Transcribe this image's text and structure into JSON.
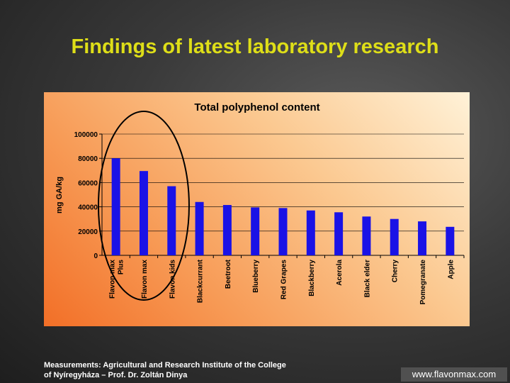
{
  "slide": {
    "title": "Findings of latest laboratory research",
    "credit_line1": "Measurements: Agricultural and Research Institute of the College",
    "credit_line2": "of Nyíregyháza – Prof. Dr. Zoltán Dinya",
    "website": "www.flavonmax.com"
  },
  "colors": {
    "title": "#dede18",
    "bar": "#1a12e6",
    "highlight_ellipse": "#000000"
  },
  "chart_data": {
    "type": "bar",
    "title": "Total polyphenol content",
    "xlabel": "",
    "ylabel": "mg GA/kg",
    "ylim": [
      0,
      100000
    ],
    "yticks": [
      0,
      20000,
      40000,
      60000,
      80000,
      100000
    ],
    "grid": true,
    "categories": [
      [
        "Flavon max",
        "Plus"
      ],
      [
        "Flavon max"
      ],
      [
        "Flavon kids"
      ],
      [
        "Blackcurrant"
      ],
      [
        "Beetroot"
      ],
      [
        "Blueberry"
      ],
      [
        "Red Grapes"
      ],
      [
        "Blackberry"
      ],
      [
        "Acerola"
      ],
      [
        "Black elder"
      ],
      [
        "Cherry"
      ],
      [
        "Pomegranate"
      ],
      [
        "Apple"
      ]
    ],
    "values": [
      80000,
      69500,
      57000,
      44000,
      41500,
      39500,
      39000,
      37000,
      35500,
      32000,
      30000,
      28000,
      23500
    ],
    "annotation": "ellipse around first three bars"
  }
}
